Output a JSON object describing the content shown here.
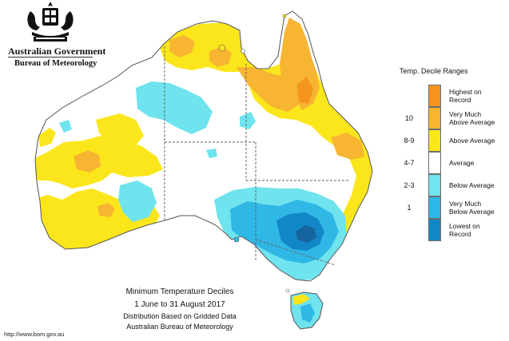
{
  "header": {
    "gov_name": "Australian Government",
    "bureau_name": "Bureau of Meteorology"
  },
  "legend": {
    "title": "Temp. Decile Ranges",
    "items": [
      {
        "range": "",
        "label_line1": "Highest on",
        "label_line2": "Record",
        "color": "#f5941e"
      },
      {
        "range": "10",
        "label_line1": "Very Much",
        "label_line2": "Above Average",
        "color": "#f7b531"
      },
      {
        "range": "8-9",
        "label_line1": "Above Average",
        "label_line2": "",
        "color": "#fbe61c"
      },
      {
        "range": "4-7",
        "label_line1": "Average",
        "label_line2": "",
        "color": "#ffffff"
      },
      {
        "range": "2-3",
        "label_line1": "Below Average",
        "label_line2": "",
        "color": "#6fe3ee"
      },
      {
        "range": "1",
        "label_line1": "Very Much",
        "label_line2": "Below Average",
        "color": "#2fb7e6"
      },
      {
        "range": "",
        "label_line1": "Lowest on",
        "label_line2": "Record",
        "color": "#1187c7"
      }
    ]
  },
  "caption": {
    "title": "Minimum Temperature Deciles",
    "dates": "1 June to 31 August 2017",
    "line1": "Distribution Based on Gridded Data",
    "line2": "Australian Bureau of Meteorology"
  },
  "footer": {
    "url": "http://www.bom.gov.au"
  },
  "map": {
    "colors": {
      "land": "#ffffff",
      "border": "#555555",
      "state_border": "#666666",
      "above": "#fbe61c",
      "very_much_above": "#f7b531",
      "highest": "#f5941e",
      "below": "#6fe3ee",
      "very_much_below": "#2fb7e6",
      "lowest": "#1187c7",
      "deep_below": "#16659e"
    }
  }
}
